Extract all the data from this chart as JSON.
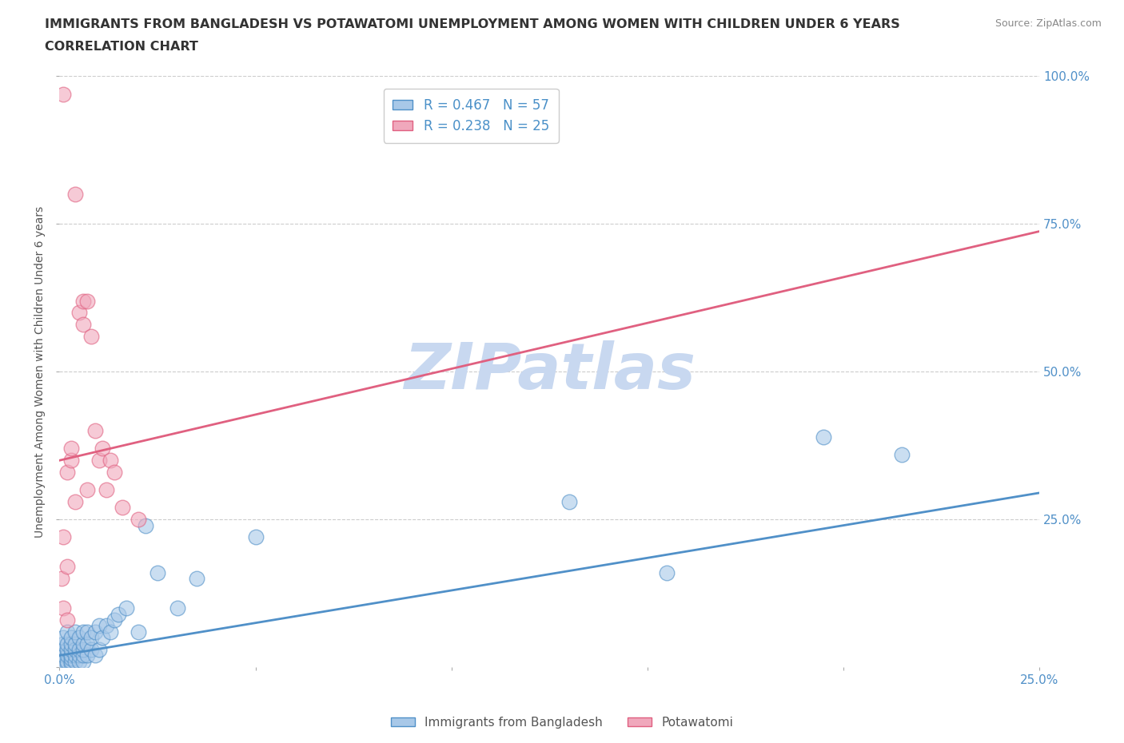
{
  "title_line1": "IMMIGRANTS FROM BANGLADESH VS POTAWATOMI UNEMPLOYMENT AMONG WOMEN WITH CHILDREN UNDER 6 YEARS",
  "title_line2": "CORRELATION CHART",
  "source_text": "Source: ZipAtlas.com",
  "ylabel": "Unemployment Among Women with Children Under 6 years",
  "legend_bottom": [
    "Immigrants from Bangladesh",
    "Potawatomi"
  ],
  "R_blue": 0.467,
  "N_blue": 57,
  "R_pink": 0.238,
  "N_pink": 25,
  "blue_color": "#A8C8E8",
  "pink_color": "#F0A8BC",
  "blue_line_color": "#5090C8",
  "pink_line_color": "#E06080",
  "watermark": "ZIPatlas",
  "watermark_color": "#C8D8F0",
  "xlim": [
    0,
    0.25
  ],
  "ylim": [
    0,
    1.0
  ],
  "blue_intercept": 0.02,
  "blue_slope": 1.1,
  "pink_intercept": 0.35,
  "pink_slope": 1.55,
  "blue_scatter_x": [
    0.0005,
    0.001,
    0.001,
    0.001,
    0.001,
    0.002,
    0.002,
    0.002,
    0.002,
    0.002,
    0.002,
    0.003,
    0.003,
    0.003,
    0.003,
    0.003,
    0.003,
    0.003,
    0.004,
    0.004,
    0.004,
    0.004,
    0.004,
    0.005,
    0.005,
    0.005,
    0.005,
    0.006,
    0.006,
    0.006,
    0.006,
    0.006,
    0.007,
    0.007,
    0.007,
    0.008,
    0.008,
    0.009,
    0.009,
    0.01,
    0.01,
    0.011,
    0.012,
    0.013,
    0.014,
    0.015,
    0.017,
    0.02,
    0.022,
    0.025,
    0.03,
    0.035,
    0.05,
    0.13,
    0.155,
    0.195,
    0.215
  ],
  "blue_scatter_y": [
    0.01,
    0.02,
    0.03,
    0.04,
    0.05,
    0.005,
    0.01,
    0.02,
    0.03,
    0.04,
    0.06,
    0.005,
    0.01,
    0.015,
    0.02,
    0.03,
    0.04,
    0.05,
    0.01,
    0.02,
    0.03,
    0.04,
    0.06,
    0.01,
    0.02,
    0.03,
    0.05,
    0.01,
    0.02,
    0.03,
    0.04,
    0.06,
    0.02,
    0.04,
    0.06,
    0.03,
    0.05,
    0.02,
    0.06,
    0.03,
    0.07,
    0.05,
    0.07,
    0.06,
    0.08,
    0.09,
    0.1,
    0.06,
    0.24,
    0.16,
    0.1,
    0.15,
    0.22,
    0.28,
    0.16,
    0.39,
    0.36
  ],
  "pink_scatter_x": [
    0.0005,
    0.001,
    0.001,
    0.001,
    0.002,
    0.002,
    0.002,
    0.003,
    0.003,
    0.004,
    0.004,
    0.005,
    0.006,
    0.006,
    0.007,
    0.007,
    0.008,
    0.009,
    0.01,
    0.011,
    0.012,
    0.013,
    0.014,
    0.016,
    0.02
  ],
  "pink_scatter_y": [
    0.15,
    0.22,
    0.1,
    0.97,
    0.17,
    0.33,
    0.08,
    0.35,
    0.37,
    0.8,
    0.28,
    0.6,
    0.62,
    0.58,
    0.3,
    0.62,
    0.56,
    0.4,
    0.35,
    0.37,
    0.3,
    0.35,
    0.33,
    0.27,
    0.25
  ]
}
